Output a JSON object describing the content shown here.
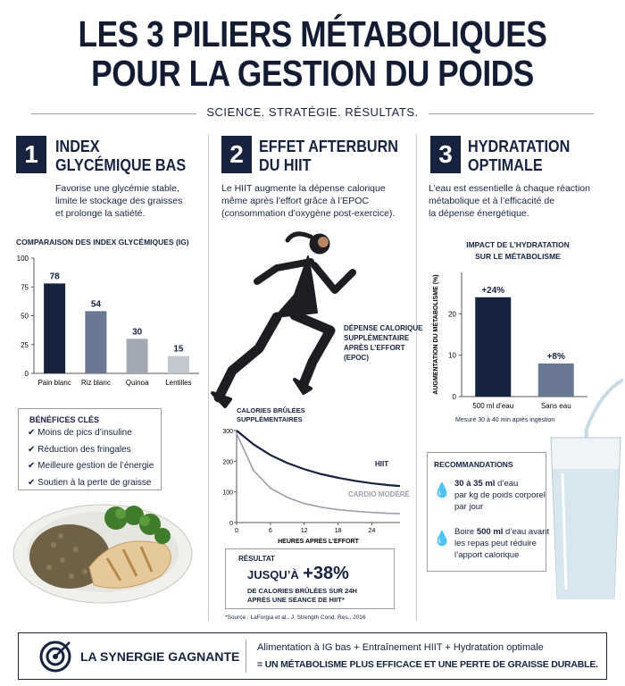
{
  "header": {
    "title_lines": [
      "LES 3 PILIERS MÉTABOLIQUES",
      "POUR LA GESTION DU POIDS"
    ],
    "tagline": "SCIENCE. STRATÉGIE. RÉSULTATS."
  },
  "pillars": [
    {
      "number": "1",
      "title_lines": [
        "INDEX",
        "GLYCÉMIQUE BAS"
      ],
      "description": [
        "Favorise une glycémie stable,",
        "limite le stockage des graisses",
        "et prolonge la satiété."
      ],
      "chart": {
        "type": "bar",
        "title": "COMPARAISON DES INDEX GLYCÉMIQUES (IG)",
        "categories": [
          "Pain blanc",
          "Riz blanc",
          "Quinoa",
          "Lentilles"
        ],
        "values": [
          78,
          54,
          30,
          15
        ],
        "colors": [
          "#17223f",
          "#6a7896",
          "#a3a9b4",
          "#c3c7ce"
        ],
        "ylim": [
          0,
          100
        ],
        "yticks": [
          0,
          25,
          50,
          75,
          100
        ]
      },
      "benefits": {
        "title": "BÉNÉFICES CLÉS",
        "items": [
          "Moins de pics d’insuline",
          "Réduction des fringales",
          "Meilleure gestion de l’énergie",
          "Soutien à la perte de graisse"
        ]
      }
    },
    {
      "number": "2",
      "title_lines": [
        "EFFET AFTERBURN",
        "DU HIIT"
      ],
      "description": [
        "Le HIIT augmente la dépense calorique",
        "même après l’effort grâce à l’EPOC",
        "(consommation d’oxygène post-exercice)."
      ],
      "annotation": [
        "DÉPENSE CALORIQUE",
        "SUPPLÉMENTAIRE",
        "APRÈS L’EFFORT",
        "(EPOC)"
      ],
      "chart": {
        "type": "line",
        "title_lines": [
          "CALORIES BRÛLÉES",
          "SUPPLÉMENTAIRES"
        ],
        "x_label": "HEURES APRÈS L’EFFORT",
        "x": [
          0,
          3,
          6,
          9,
          12,
          15,
          18,
          21,
          24,
          27,
          29
        ],
        "series": [
          {
            "name": "HIIT",
            "color": "#17223f",
            "values": [
              300,
              255,
              220,
              194,
              174,
              158,
              146,
              136,
              128,
              122,
              119
            ]
          },
          {
            "name": "CARDIO MODÉRÉ",
            "color": "#9aa0aa",
            "values": [
              290,
              170,
              112,
              82,
              62,
              50,
              42,
              37,
              33,
              30,
              29
            ]
          }
        ],
        "xlim": [
          0,
          29
        ],
        "xticks": [
          0,
          6,
          12,
          18,
          24
        ],
        "ylim": [
          0,
          300
        ],
        "yticks": [
          0,
          100,
          200,
          300
        ]
      },
      "result": {
        "label": "RÉSULTAT",
        "prefix": "JUSQU’À",
        "value": "+38%",
        "lines": [
          "DE CALORIES BRÛLÉES SUR 24H",
          "APRÈS UNE SÉANCE DE HIIT*"
        ]
      },
      "source": "*Source : LaForgia et al., J. Strength Cond. Res., 2016"
    },
    {
      "number": "3",
      "title_lines": [
        "HYDRATATION",
        "OPTIMALE"
      ],
      "description": [
        "L’eau est essentielle à chaque réaction",
        "métabolique et à l’efficacité de",
        "la dépense énergétique."
      ],
      "chart": {
        "type": "bar",
        "title_lines": [
          "IMPACT DE L’HYDRATATION",
          "SUR LE MÉTABOLISME"
        ],
        "y_label": "AUGMENTATION DU MÉTABOLISME (%)",
        "categories": [
          "500 ml d’eau",
          "Sans eau"
        ],
        "values": [
          24,
          8
        ],
        "value_labels": [
          "+24%",
          "+8%"
        ],
        "colors": [
          "#17223f",
          "#6a7896"
        ],
        "ylim": [
          0,
          30
        ],
        "yticks": [
          0,
          10,
          20
        ],
        "note": "Mesuré 30 à 40 min après ingestion"
      },
      "recommendations": {
        "title": "RECOMMANDATIONS",
        "items": [
          {
            "lead": "30 à 35 ml",
            "lines": [
              "d’eau",
              "par kg de poids corporel",
              "par jour"
            ]
          },
          {
            "intro": "Boire",
            "lead": "500 ml",
            "lines": [
              "d’eau avant",
              "les repas peut réduire",
              "l’apport calorique"
            ]
          }
        ]
      }
    }
  ],
  "footer": {
    "title": "LA SYNERGIE GAGNANTE",
    "formula": "Alimentation à IG bas + Entraînement HIIT + Hydratation optimale",
    "conclusion": "= UN MÉTABOLISME PLUS EFFICACE ET UNE PERTE DE GRAISSE DURABLE."
  }
}
